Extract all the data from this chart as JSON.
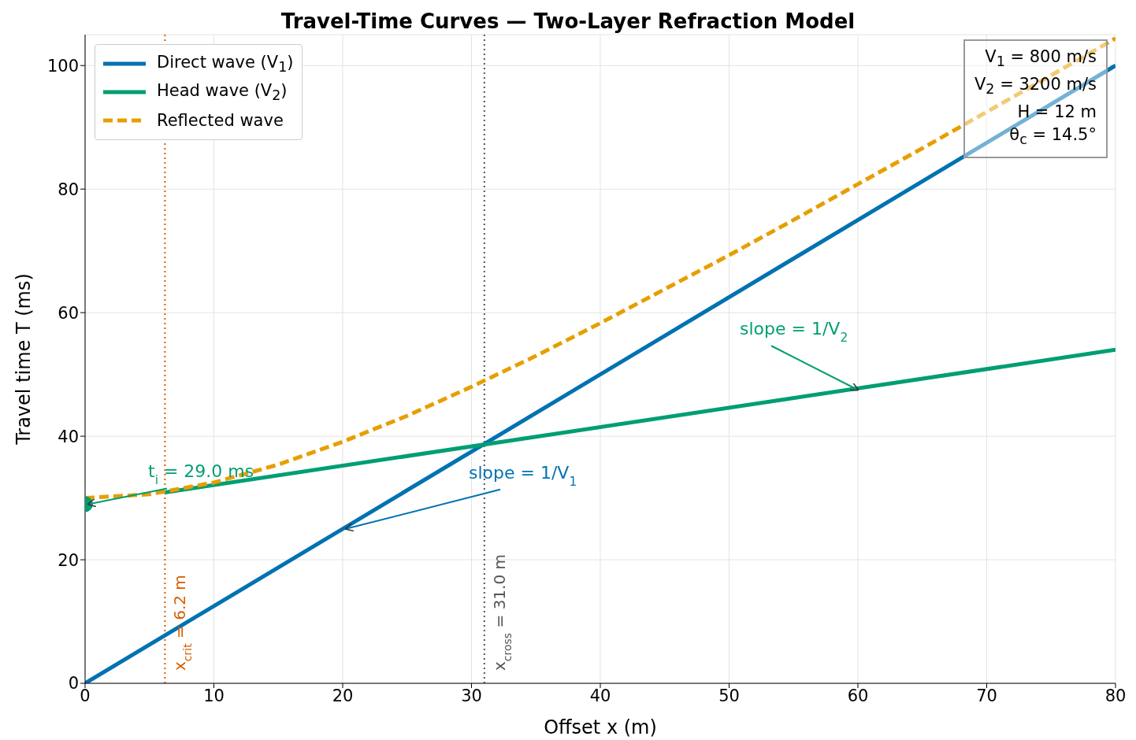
{
  "chart_data": {
    "type": "line",
    "title": "Travel-Time Curves — Two-Layer Refraction Model",
    "xlabel": "Offset x (m)",
    "ylabel": "Travel time T (ms)",
    "xlim": [
      0,
      80
    ],
    "xticks": [
      0,
      10,
      20,
      30,
      40,
      50,
      60,
      70,
      80
    ],
    "ylim": [
      0,
      105
    ],
    "yticks": [
      0,
      20,
      40,
      60,
      80,
      100
    ],
    "grid": true,
    "legend": "top left",
    "marker": "none",
    "series": [
      {
        "name": "Direct wave (V$_{1}$)",
        "color": "#0072b2",
        "x": [
          0,
          80
        ],
        "values": [
          0,
          100
        ]
      },
      {
        "name": "Head wave (V$_{2}$)",
        "color": "#009e73",
        "x": [
          6.2,
          80
        ],
        "values": [
          30.9,
          54.0
        ]
      },
      {
        "name": "Reflected wave",
        "color": "#e69f00",
        "line_style": "dashed",
        "x": [
          0,
          5,
          10,
          15,
          20,
          25,
          30,
          35,
          40,
          45,
          50,
          55,
          60,
          65,
          70,
          75,
          80
        ],
        "values": [
          30.0,
          30.6,
          32.5,
          35.4,
          39.1,
          43.3,
          48.0,
          53.0,
          58.3,
          63.8,
          69.3,
          75.0,
          80.8,
          86.6,
          92.5,
          98.4,
          104.4
        ]
      },
      {
        "type": "scatter",
        "color": "#009e73",
        "marker": "circle",
        "x": [
          0
        ],
        "values": [
          29.0
        ]
      }
    ],
    "ref_lines": [
      {
        "axis": "x",
        "value": 6.2,
        "label": "x$_{crit}$ = 6.2 m",
        "color": "#d55e00",
        "line_style": "dotted"
      },
      {
        "axis": "x",
        "value": 31.0,
        "label": "x$_{cross}$ = 31.0 m",
        "color": "#555555",
        "line_style": "dotted"
      }
    ],
    "annotations": [
      {
        "text": "t$_{i}$ = 29.0 ms",
        "x": 0,
        "y": 29.0
      },
      {
        "text": "slope  = 1/V$_{2}$",
        "x": 60,
        "y": 47.5
      },
      {
        "text": "slope  = 1/V$_{1}$",
        "x": 20,
        "y": 25
      },
      "V$_{1}$ = 800 m/s",
      "V$_{2}$ = 3200 m/s",
      "H = 12 m",
      "θ$_{c}$ = 14.5°"
    ]
  }
}
